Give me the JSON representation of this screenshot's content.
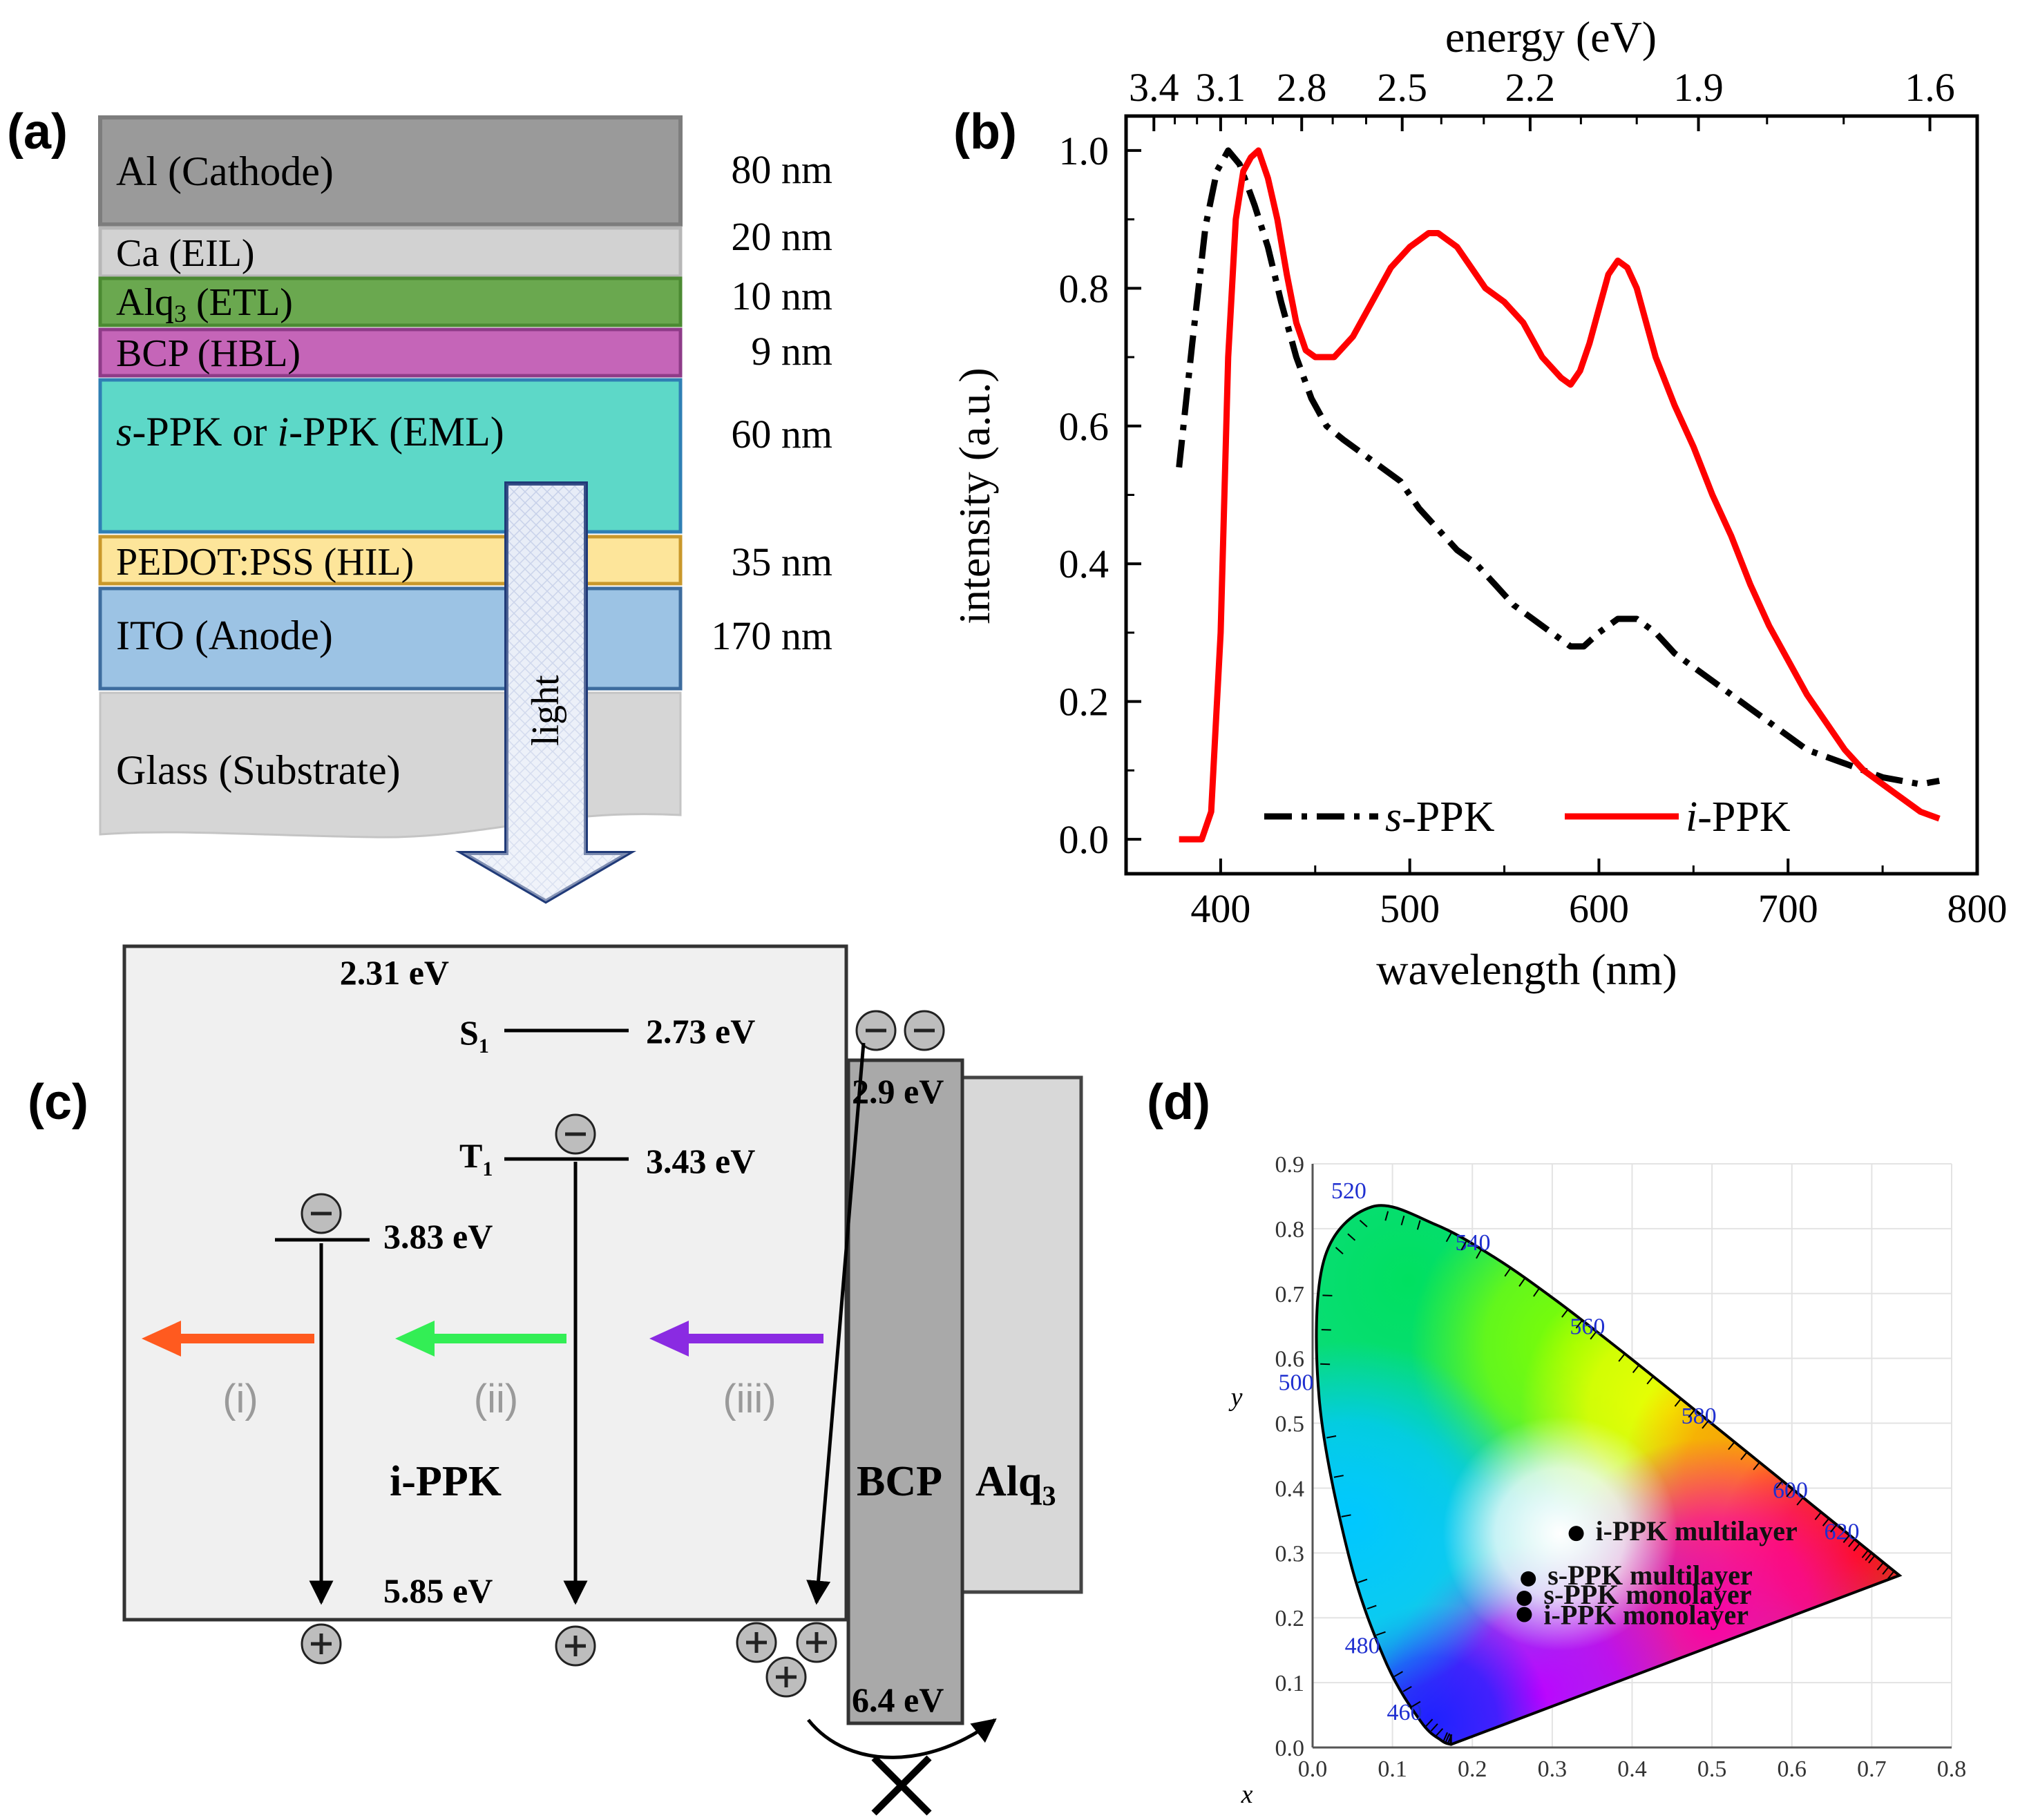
{
  "panel_a": {
    "label": "(a)",
    "layers": [
      {
        "name": "Al (Cathode)",
        "thickness": "80 nm",
        "color": "#9a9a9a"
      },
      {
        "name": "Ca (EIL)",
        "thickness": "20 nm",
        "color": "#d2d2d2"
      },
      {
        "name": "Alq3 (ETL)",
        "thickness": "10 nm",
        "color": "#6aa84f"
      },
      {
        "name": "BCP (HBL)",
        "thickness": "9 nm",
        "color": "#c565b8"
      },
      {
        "name": "s-PPK or i-PPK (EML)",
        "thickness": "60 nm",
        "color": "#5dd8c8"
      },
      {
        "name": "PEDOT:PSS (HIL)",
        "thickness": "35 nm",
        "color": "#fde59a"
      },
      {
        "name": "ITO (Anode)",
        "thickness": "170 nm",
        "color": "#9cc3e4"
      },
      {
        "name": "Glass (Substrate)",
        "thickness": "",
        "color": "#d6d6d6"
      }
    ],
    "arrow_label": "light"
  },
  "panel_c": {
    "label": "(c)",
    "energies": {
      "lumo": "2.31 eV",
      "s1": "2.73 eV",
      "t1": "3.43 eV",
      "trap": "3.83 eV",
      "homo": "5.85 eV",
      "bcp_lumo": "2.9 eV",
      "bcp_homo": "6.4 eV"
    },
    "state_labels": {
      "s1": "S",
      "s1_sub": "1",
      "t1": "T",
      "t1_sub": "1"
    },
    "emission_labels": [
      "(i)",
      "(ii)",
      "(iii)"
    ],
    "emission_colors": [
      "#ff5a1f",
      "#33ee55",
      "#8a2be2"
    ],
    "material": "i-PPK",
    "bcp": "BCP",
    "alq": "Alq",
    "alq_sub": "3"
  },
  "chart_data": [
    {
      "type": "line",
      "panel_label": "(b)",
      "title": "",
      "xlabel": "wavelength (nm)",
      "ylabel": "intensity (a.u.)",
      "top_axis_label": "energy (eV)",
      "top_tick_labels": [
        "3.4",
        "3.1",
        "2.8",
        "2.5",
        "2.2",
        "1.9",
        "1.6"
      ],
      "top_tick_energies": [
        3.4,
        3.1,
        2.8,
        2.5,
        2.2,
        1.9,
        1.6
      ],
      "xlim": [
        350,
        800
      ],
      "ylim": [
        -0.05,
        1.05
      ],
      "xticks": [
        400,
        500,
        600,
        700,
        800
      ],
      "yticks": [
        0.0,
        0.2,
        0.4,
        0.6,
        0.8,
        1.0
      ],
      "ytick_labels": [
        "0.0",
        "0.2",
        "0.4",
        "0.6",
        "0.8",
        "1.0"
      ],
      "legend_position": "bottom",
      "series": [
        {
          "name": "s-PPK",
          "name_prefix": "s",
          "name_suffix": "-PPK",
          "color": "#000000",
          "style": "dashdot",
          "x": [
            378,
            385,
            392,
            398,
            404,
            410,
            418,
            425,
            432,
            440,
            448,
            456,
            465,
            475,
            485,
            495,
            505,
            515,
            525,
            535,
            545,
            555,
            565,
            575,
            585,
            592,
            600,
            610,
            620,
            630,
            640,
            650,
            660,
            670,
            680,
            690,
            700,
            710,
            720,
            730,
            740,
            750,
            760,
            770,
            780
          ],
          "values": [
            0.54,
            0.72,
            0.89,
            0.97,
            1.0,
            0.98,
            0.92,
            0.86,
            0.78,
            0.7,
            0.64,
            0.6,
            0.58,
            0.56,
            0.54,
            0.52,
            0.48,
            0.45,
            0.42,
            0.4,
            0.37,
            0.34,
            0.32,
            0.3,
            0.28,
            0.28,
            0.3,
            0.32,
            0.32,
            0.3,
            0.27,
            0.25,
            0.23,
            0.21,
            0.19,
            0.17,
            0.15,
            0.13,
            0.12,
            0.11,
            0.1,
            0.09,
            0.085,
            0.08,
            0.085
          ]
        },
        {
          "name": "i-PPK",
          "name_prefix": "i",
          "name_suffix": "-PPK",
          "color": "#ff0000",
          "style": "solid",
          "x": [
            378,
            390,
            395,
            400,
            404,
            408,
            412,
            416,
            420,
            425,
            430,
            435,
            440,
            445,
            450,
            455,
            460,
            470,
            480,
            490,
            500,
            505,
            510,
            515,
            520,
            525,
            530,
            540,
            550,
            560,
            570,
            580,
            585,
            590,
            595,
            600,
            605,
            610,
            615,
            620,
            625,
            630,
            640,
            650,
            660,
            670,
            680,
            690,
            700,
            710,
            720,
            730,
            740,
            750,
            760,
            770,
            780
          ],
          "values": [
            0.0,
            0.0,
            0.04,
            0.3,
            0.7,
            0.9,
            0.97,
            0.99,
            1.0,
            0.96,
            0.9,
            0.82,
            0.75,
            0.71,
            0.7,
            0.7,
            0.7,
            0.73,
            0.78,
            0.83,
            0.86,
            0.87,
            0.88,
            0.88,
            0.87,
            0.86,
            0.84,
            0.8,
            0.78,
            0.75,
            0.7,
            0.67,
            0.66,
            0.68,
            0.72,
            0.77,
            0.82,
            0.84,
            0.83,
            0.8,
            0.75,
            0.7,
            0.63,
            0.57,
            0.5,
            0.44,
            0.37,
            0.31,
            0.26,
            0.21,
            0.17,
            0.13,
            0.1,
            0.08,
            0.06,
            0.04,
            0.03
          ]
        }
      ]
    },
    {
      "type": "scatter",
      "panel_label": "(d)",
      "title": "",
      "xlabel": "x",
      "ylabel": "y",
      "xlim": [
        0.0,
        0.8
      ],
      "ylim": [
        0.0,
        0.9
      ],
      "xticks": [
        0.0,
        0.1,
        0.2,
        0.3,
        0.4,
        0.5,
        0.6,
        0.7,
        0.8
      ],
      "xtick_labels": [
        "0.0",
        "0.1",
        "0.2",
        "0.3",
        "0.4",
        "0.5",
        "0.6",
        "0.7",
        "0.8"
      ],
      "yticks": [
        0.0,
        0.1,
        0.2,
        0.3,
        0.4,
        0.5,
        0.6,
        0.7,
        0.8,
        0.9
      ],
      "ytick_labels": [
        "0.0",
        "0.1",
        "0.2",
        "0.3",
        "0.4",
        "0.5",
        "0.6",
        "0.7",
        "0.8",
        "0.9"
      ],
      "locus": {
        "x": [
          0.1741,
          0.172,
          0.1611,
          0.1355,
          0.0913,
          0.0454,
          0.0082,
          0.0139,
          0.0743,
          0.1547,
          0.2296,
          0.3016,
          0.3731,
          0.4441,
          0.5125,
          0.5752,
          0.627,
          0.6658,
          0.6915,
          0.7079,
          0.7347
        ],
        "y": [
          0.005,
          0.005,
          0.0109,
          0.0399,
          0.1327,
          0.295,
          0.5384,
          0.7502,
          0.8338,
          0.8059,
          0.7543,
          0.6923,
          0.6245,
          0.5547,
          0.4866,
          0.4242,
          0.3725,
          0.334,
          0.3083,
          0.292,
          0.2653
        ]
      },
      "wavelength_labels": [
        {
          "text": "460",
          "x": 0.144,
          "y": 0.0297
        },
        {
          "text": "480",
          "x": 0.0913,
          "y": 0.1327
        },
        {
          "text": "500",
          "x": 0.0082,
          "y": 0.5384
        },
        {
          "text": "520",
          "x": 0.0743,
          "y": 0.8338
        },
        {
          "text": "540",
          "x": 0.2296,
          "y": 0.7543
        },
        {
          "text": "560",
          "x": 0.3731,
          "y": 0.6245
        },
        {
          "text": "580",
          "x": 0.5125,
          "y": 0.4866
        },
        {
          "text": "600",
          "x": 0.627,
          "y": 0.3725
        },
        {
          "text": "620",
          "x": 0.6915,
          "y": 0.3083
        }
      ],
      "points": [
        {
          "name": "i-PPK multilayer",
          "x": 0.33,
          "y": 0.33
        },
        {
          "name": "s-PPK multilayer",
          "x": 0.27,
          "y": 0.26
        },
        {
          "name": "s-PPK monolayer",
          "x": 0.265,
          "y": 0.23
        },
        {
          "name": "i-PPK monolayer",
          "x": 0.265,
          "y": 0.205
        }
      ]
    }
  ]
}
